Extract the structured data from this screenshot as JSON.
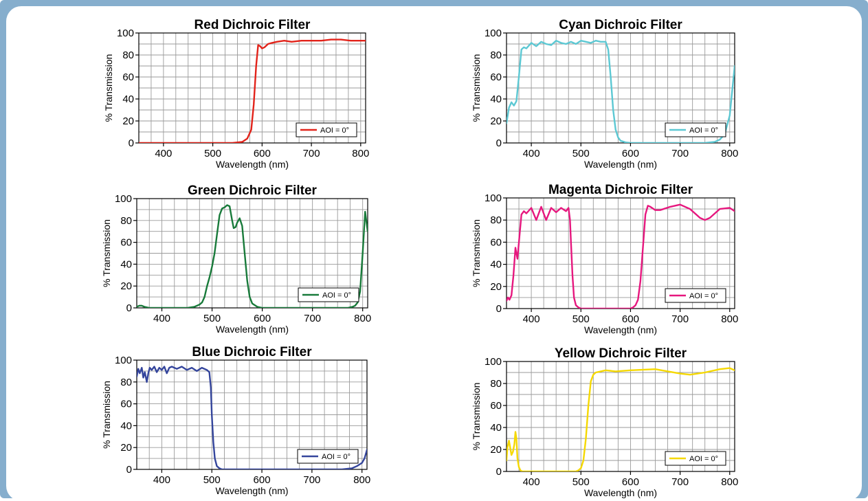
{
  "chart_data": [
    {
      "type": "line",
      "title": "Red Dichroic Filter",
      "xlabel": "Wavelength (nm)",
      "ylabel": "% Transmission",
      "xlim": [
        350,
        810
      ],
      "ylim": [
        0,
        100
      ],
      "xticks": [
        "400",
        "500",
        "600",
        "700",
        "800"
      ],
      "yticks": [
        "0",
        "20",
        "40",
        "60",
        "80",
        "100"
      ],
      "grid": true,
      "legend_position": "bottom-right",
      "series": [
        {
          "name": "AOI = 0°",
          "color": "#e2231a",
          "x": [
            350,
            400,
            450,
            500,
            540,
            560,
            570,
            578,
            583,
            588,
            592,
            596,
            600,
            605,
            612,
            620,
            630,
            645,
            660,
            680,
            700,
            720,
            740,
            760,
            780,
            800,
            810
          ],
          "y": [
            0,
            0,
            0,
            0,
            0,
            1,
            4,
            12,
            35,
            70,
            89,
            88,
            86,
            87,
            90,
            91,
            92,
            93,
            92,
            93,
            93,
            93,
            94,
            94,
            93,
            93,
            93
          ]
        }
      ]
    },
    {
      "type": "line",
      "title": "Cyan Dichroic Filter",
      "xlabel": "Wavelength (nm)",
      "ylabel": "% Transmission",
      "xlim": [
        350,
        810
      ],
      "ylim": [
        0,
        100
      ],
      "xticks": [
        "400",
        "500",
        "600",
        "700",
        "800"
      ],
      "yticks": [
        "0",
        "20",
        "40",
        "60",
        "80",
        "100"
      ],
      "grid": true,
      "legend_position": "bottom-right",
      "series": [
        {
          "name": "AOI = 0°",
          "color": "#5cc8d3",
          "x": [
            350,
            355,
            360,
            365,
            370,
            375,
            380,
            385,
            390,
            400,
            410,
            420,
            430,
            440,
            450,
            460,
            470,
            480,
            490,
            500,
            510,
            520,
            530,
            540,
            550,
            555,
            560,
            565,
            570,
            575,
            580,
            590,
            600,
            620,
            650,
            700,
            750,
            770,
            780,
            790,
            800,
            810
          ],
          "y": [
            18,
            32,
            37,
            34,
            38,
            60,
            85,
            87,
            86,
            91,
            88,
            92,
            90,
            89,
            93,
            91,
            90,
            92,
            90,
            93,
            92,
            91,
            93,
            92,
            92,
            85,
            60,
            30,
            12,
            5,
            2,
            0.5,
            0,
            0,
            0,
            0,
            0,
            1,
            3,
            8,
            25,
            70
          ]
        }
      ]
    },
    {
      "type": "line",
      "title": "Green Dichroic Filter",
      "xlabel": "Wavelength (nm)",
      "ylabel": "% Transmission",
      "xlim": [
        350,
        810
      ],
      "ylim": [
        0,
        100
      ],
      "xticks": [
        "400",
        "500",
        "600",
        "700",
        "800"
      ],
      "yticks": [
        "0",
        "20",
        "40",
        "60",
        "80",
        "100"
      ],
      "grid": true,
      "legend_position": "bottom-right",
      "series": [
        {
          "name": "AOI = 0°",
          "color": "#187a3a",
          "x": [
            350,
            355,
            360,
            365,
            375,
            400,
            450,
            465,
            475,
            480,
            485,
            490,
            495,
            500,
            505,
            510,
            515,
            520,
            525,
            530,
            535,
            540,
            543,
            547,
            550,
            555,
            560,
            565,
            570,
            575,
            580,
            590,
            600,
            650,
            700,
            750,
            770,
            780,
            785,
            790,
            795,
            800,
            805,
            810
          ],
          "y": [
            1,
            2,
            2,
            1,
            0,
            0,
            0,
            1,
            3,
            5,
            10,
            20,
            28,
            38,
            50,
            68,
            85,
            91,
            92,
            94,
            93,
            80,
            73,
            74,
            78,
            82,
            75,
            50,
            25,
            10,
            4,
            1,
            0,
            0,
            0,
            0,
            0,
            1,
            2,
            5,
            15,
            50,
            88,
            70
          ]
        }
      ]
    },
    {
      "type": "line",
      "title": "Magenta Dichroic Filter",
      "xlabel": "Wavelength (nm)",
      "ylabel": "% Transmission",
      "xlim": [
        350,
        810
      ],
      "ylim": [
        0,
        100
      ],
      "xticks": [
        "400",
        "500",
        "600",
        "700",
        "800"
      ],
      "yticks": [
        "0",
        "20",
        "40",
        "60",
        "80",
        "100"
      ],
      "grid": true,
      "legend_position": "bottom-right",
      "series": [
        {
          "name": "AOI = 0°",
          "color": "#e6177e",
          "x": [
            350,
            353,
            356,
            360,
            364,
            368,
            372,
            376,
            380,
            385,
            390,
            400,
            410,
            420,
            430,
            440,
            450,
            460,
            470,
            475,
            478,
            480,
            483,
            486,
            490,
            495,
            500,
            520,
            560,
            600,
            605,
            610,
            615,
            620,
            625,
            630,
            635,
            640,
            650,
            660,
            680,
            700,
            720,
            740,
            750,
            760,
            780,
            800,
            810
          ],
          "y": [
            7,
            10,
            8,
            12,
            30,
            55,
            45,
            65,
            85,
            88,
            86,
            91,
            80,
            92,
            80,
            91,
            87,
            91,
            88,
            91,
            80,
            60,
            30,
            10,
            3,
            1,
            0,
            0,
            0,
            0,
            1,
            3,
            8,
            25,
            55,
            85,
            93,
            92,
            89,
            89,
            92,
            94,
            90,
            82,
            80,
            82,
            90,
            91,
            88
          ]
        }
      ]
    },
    {
      "type": "line",
      "title": "Blue Dichroic Filter",
      "xlabel": "Wavelength (nm)",
      "ylabel": "% Transmission",
      "xlim": [
        350,
        810
      ],
      "ylim": [
        0,
        100
      ],
      "xticks": [
        "400",
        "500",
        "600",
        "700",
        "800"
      ],
      "yticks": [
        "0",
        "20",
        "40",
        "60",
        "80",
        "100"
      ],
      "grid": true,
      "legend_position": "bottom-right",
      "series": [
        {
          "name": "AOI = 0°",
          "color": "#34459c",
          "x": [
            350,
            353,
            356,
            360,
            363,
            366,
            370,
            373,
            376,
            380,
            385,
            390,
            395,
            400,
            405,
            410,
            415,
            420,
            430,
            440,
            450,
            460,
            470,
            480,
            490,
            495,
            498,
            500,
            503,
            506,
            510,
            515,
            520,
            530,
            550,
            600,
            650,
            700,
            760,
            780,
            790,
            800,
            805,
            810
          ],
          "y": [
            85,
            92,
            88,
            93,
            84,
            89,
            80,
            88,
            93,
            91,
            94,
            89,
            93,
            91,
            94,
            88,
            93,
            94,
            92,
            94,
            91,
            93,
            90,
            93,
            91,
            89,
            75,
            50,
            25,
            10,
            3,
            1,
            0,
            0,
            0,
            0,
            0,
            0,
            0,
            1,
            3,
            6,
            10,
            18
          ]
        }
      ]
    },
    {
      "type": "line",
      "title": "Yellow Dichroic Filter",
      "xlabel": "Wavelength (nm)",
      "ylabel": "% Transmission",
      "xlim": [
        350,
        810
      ],
      "ylim": [
        0,
        100
      ],
      "xticks": [
        "400",
        "500",
        "600",
        "700",
        "800"
      ],
      "yticks": [
        "0",
        "20",
        "40",
        "60",
        "80",
        "100"
      ],
      "grid": true,
      "legend_position": "bottom-right",
      "series": [
        {
          "name": "AOI = 0°",
          "color": "#f5d800",
          "x": [
            350,
            352,
            355,
            358,
            360,
            363,
            366,
            368,
            370,
            372,
            375,
            378,
            382,
            390,
            400,
            450,
            490,
            495,
            500,
            505,
            510,
            515,
            520,
            525,
            530,
            540,
            550,
            570,
            600,
            650,
            700,
            720,
            750,
            780,
            800,
            810
          ],
          "y": [
            10,
            22,
            28,
            20,
            15,
            18,
            25,
            36,
            30,
            12,
            4,
            1,
            0,
            0,
            0,
            0,
            0,
            1,
            3,
            10,
            30,
            60,
            82,
            88,
            90,
            91,
            92,
            91,
            92,
            93,
            89,
            88,
            90,
            93,
            94,
            92
          ]
        }
      ]
    }
  ]
}
